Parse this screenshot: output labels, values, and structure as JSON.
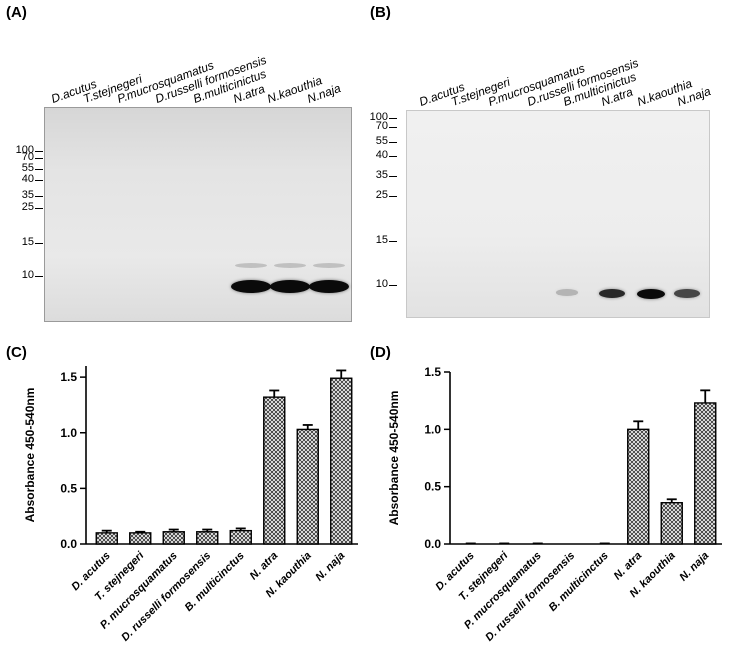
{
  "panels": {
    "a": "(A)",
    "b": "(B)",
    "c": "(C)",
    "d": "(D)"
  },
  "blot_a": {
    "lanes": [
      "D.acutus",
      "T.stejnegeri",
      "P.mucrosquamatus",
      "D.russelli formosensis",
      "B.multicinictus",
      "N.atra",
      "N.kaouthia",
      "N.naja"
    ],
    "markers": [
      "100",
      "70",
      "55",
      "40",
      "35",
      "25",
      "15",
      "10"
    ],
    "band_intensity": [
      0,
      0,
      0,
      0,
      0,
      1,
      1,
      1
    ]
  },
  "blot_b": {
    "lanes": [
      "D.acutus",
      "T.stejnegeri",
      "P.mucrosquamatus",
      "D.russelli formosensis",
      "B.multicinictus",
      "N.atra",
      "N.kaouthia",
      "N.naja"
    ],
    "markers": [
      "100",
      "70",
      "55",
      "40",
      "35",
      "25",
      "15",
      "10"
    ],
    "band_intensity": [
      0,
      0,
      0,
      0,
      0.15,
      0.85,
      1,
      0.7
    ]
  },
  "chart_data": [
    {
      "type": "bar",
      "categories": [
        "D. acutus",
        "T. stejnegeri",
        "P. mucrosquamatus",
        "D. russelli formosensis",
        "B. multicinctus",
        "N. atra",
        "N. kaouthia",
        "N. naja"
      ],
      "values": [
        0.1,
        0.1,
        0.11,
        0.11,
        0.12,
        1.32,
        1.03,
        1.49
      ],
      "errors": [
        0.02,
        0.01,
        0.02,
        0.02,
        0.02,
        0.06,
        0.04,
        0.07
      ],
      "ylabel": "Absorbance 450-540nm",
      "ylim": [
        0,
        1.6
      ],
      "yticks": [
        "0.0",
        "0.5",
        "1.0",
        "1.5"
      ],
      "ytick_values": [
        0,
        0.5,
        1.0,
        1.5
      ],
      "grid": false
    },
    {
      "type": "bar",
      "categories": [
        "D. acutus",
        "T. stejnegeri",
        "P. mucrosquamatus",
        "D. russelli formosensis",
        "B. multicinctus",
        "N. atra",
        "N. kaouthia",
        "N. naja"
      ],
      "values": [
        0.0,
        0.0,
        0.0,
        0.0,
        0.0,
        1.0,
        0.36,
        1.23
      ],
      "errors": [
        0.005,
        0.005,
        0.005,
        0.0,
        0.005,
        0.07,
        0.03,
        0.11
      ],
      "ylabel": "Absorbance 450-540nm",
      "ylim": [
        0,
        1.5
      ],
      "yticks": [
        "0.0",
        "0.5",
        "1.0",
        "1.5"
      ],
      "ytick_values": [
        0,
        0.5,
        1.0,
        1.5
      ],
      "grid": false
    }
  ]
}
